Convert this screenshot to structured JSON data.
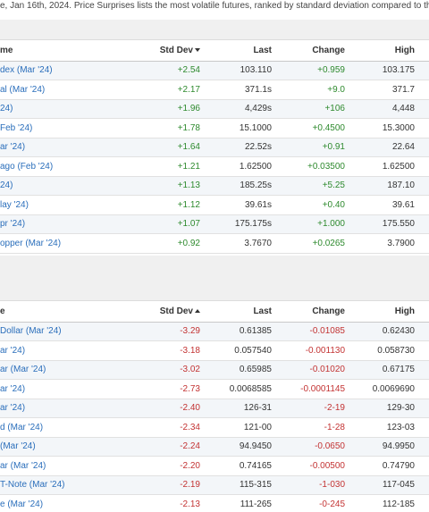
{
  "intro_text": "e, Jan 16th, 2024. Price Surprises lists the most volatile futures, ranked by standard deviation compared to the",
  "top_table": {
    "headers": {
      "name": "me",
      "std": "Std Dev",
      "last": "Last",
      "change": "Change",
      "high": "High"
    },
    "rows": [
      {
        "name": "dex (Mar '24)",
        "std": "+2.54",
        "last": "103.110",
        "change": "+0.959",
        "high": "103.175"
      },
      {
        "name": "al (Mar '24)",
        "std": "+2.17",
        "last": "371.1s",
        "change": "+9.0",
        "high": "371.7"
      },
      {
        "name": "24)",
        "std": "+1.96",
        "last": "4,429s",
        "change": "+106",
        "high": "4,448"
      },
      {
        "name": "Feb '24)",
        "std": "+1.78",
        "last": "15.1000",
        "change": "+0.4500",
        "high": "15.3000"
      },
      {
        "name": "ar '24)",
        "std": "+1.64",
        "last": "22.52s",
        "change": "+0.91",
        "high": "22.64"
      },
      {
        "name": "ago (Feb '24)",
        "std": "+1.21",
        "last": "1.62500",
        "change": "+0.03500",
        "high": "1.62500"
      },
      {
        "name": "24)",
        "std": "+1.13",
        "last": "185.25s",
        "change": "+5.25",
        "high": "187.10"
      },
      {
        "name": "lay '24)",
        "std": "+1.12",
        "last": "39.61s",
        "change": "+0.40",
        "high": "39.61"
      },
      {
        "name": "pr '24)",
        "std": "+1.07",
        "last": "175.175s",
        "change": "+1.000",
        "high": "175.550"
      },
      {
        "name": "opper (Mar '24)",
        "std": "+0.92",
        "last": "3.7670",
        "change": "+0.0265",
        "high": "3.7900"
      }
    ]
  },
  "bottom_table": {
    "headers": {
      "name": "e",
      "std": "Std Dev",
      "last": "Last",
      "change": "Change",
      "high": "High"
    },
    "rows": [
      {
        "name": "Dollar (Mar '24)",
        "std": "-3.29",
        "last": "0.61385",
        "change": "-0.01085",
        "high": "0.62430"
      },
      {
        "name": "ar '24)",
        "std": "-3.18",
        "last": "0.057540",
        "change": "-0.001130",
        "high": "0.058730"
      },
      {
        "name": "ar (Mar '24)",
        "std": "-3.02",
        "last": "0.65985",
        "change": "-0.01020",
        "high": "0.67175"
      },
      {
        "name": "ar '24)",
        "std": "-2.73",
        "last": "0.0068585",
        "change": "-0.0001145",
        "high": "0.0069690"
      },
      {
        "name": "ar '24)",
        "std": "-2.40",
        "last": "126-31",
        "change": "-2-19",
        "high": "129-30"
      },
      {
        "name": "d (Mar '24)",
        "std": "-2.34",
        "last": "121-00",
        "change": "-1-28",
        "high": "123-03"
      },
      {
        "name": "(Mar '24)",
        "std": "-2.24",
        "last": "94.9450",
        "change": "-0.0650",
        "high": "94.9950"
      },
      {
        "name": "ar (Mar '24)",
        "std": "-2.20",
        "last": "0.74165",
        "change": "-0.00500",
        "high": "0.74790"
      },
      {
        "name": "T-Note (Mar '24)",
        "std": "-2.19",
        "last": "115-315",
        "change": "-1-030",
        "high": "117-045"
      },
      {
        "name": "e (Mar '24)",
        "std": "-2.13",
        "last": "111-265",
        "change": "-0-245",
        "high": "112-185"
      }
    ]
  },
  "colors": {
    "link": "#2a6ebb",
    "positive": "#2e8a2e",
    "negative": "#c33333"
  },
  "icons": {
    "top_sort": "caret-down-icon",
    "bottom_sort": "caret-up-icon"
  }
}
